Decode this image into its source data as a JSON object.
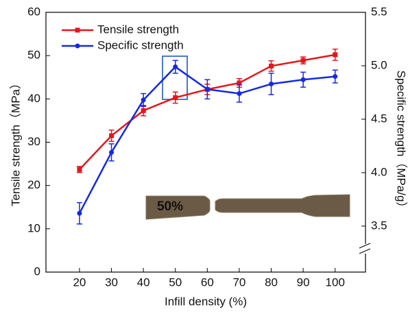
{
  "chart_data": {
    "type": "line",
    "x_label": "Infill density (%)",
    "y_label": "Tensile strength（MPa）",
    "y2_label": "Specific strength（MPa/g）",
    "x": [
      20,
      30,
      40,
      50,
      60,
      70,
      80,
      90,
      100
    ],
    "xlim": [
      9.5,
      109.5
    ],
    "xticks": [
      20,
      30,
      40,
      50,
      60,
      70,
      80,
      90,
      100
    ],
    "ylim": [
      0,
      60
    ],
    "yticks": [
      0,
      10,
      20,
      30,
      40,
      50,
      60
    ],
    "y2lim": [
      3.07,
      5.5
    ],
    "y2ticks": [
      {
        "value": 3.5,
        "label": "3.5"
      },
      {
        "value": 4.0,
        "label": "4.0"
      },
      {
        "value": 4.5,
        "label": "4.5"
      },
      {
        "value": 5.0,
        "label": "5.0"
      },
      {
        "value": 5.5,
        "label": "5.5"
      }
    ],
    "legend": "upper left",
    "series": [
      {
        "name": "Tensile strength",
        "color": "#e8141b",
        "marker": "square",
        "values": [
          23.7,
          31.5,
          37.3,
          40.3,
          42.2,
          43.7,
          47.6,
          48.9,
          50.2
        ],
        "errors": [
          0.7,
          1.3,
          1.2,
          1.3,
          1.2,
          1.0,
          1.2,
          0.8,
          1.3
        ]
      },
      {
        "name": "Specific strength",
        "color": "#1428e6",
        "marker": "circle",
        "axis": "y2",
        "values": [
          3.62,
          4.19,
          4.68,
          4.99,
          4.78,
          4.74,
          4.83,
          4.87,
          4.9
        ],
        "errors": [
          0.1,
          0.08,
          0.06,
          0.06,
          0.09,
          0.08,
          0.1,
          0.07,
          0.06
        ]
      }
    ],
    "inset_label": "50%"
  }
}
